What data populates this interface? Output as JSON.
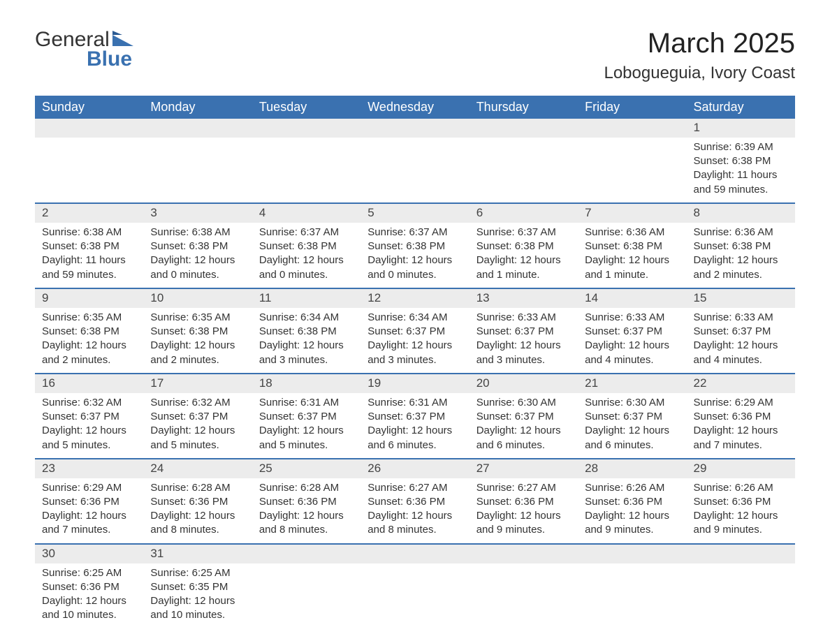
{
  "logo": {
    "text1": "General",
    "text2": "Blue",
    "accent_color": "#3a71b0"
  },
  "title": "March 2025",
  "location": "Lobogueguia, Ivory Coast",
  "colors": {
    "header_bg": "#3a71b0",
    "header_text": "#ffffff",
    "daynum_bg": "#ececec",
    "row_divider": "#3a71b0",
    "body_text": "#333333",
    "background": "#ffffff"
  },
  "typography": {
    "title_fontsize_pt": 30,
    "location_fontsize_pt": 18,
    "header_fontsize_pt": 14,
    "cell_fontsize_pt": 11
  },
  "calendar": {
    "type": "table",
    "columns": [
      "Sunday",
      "Monday",
      "Tuesday",
      "Wednesday",
      "Thursday",
      "Friday",
      "Saturday"
    ],
    "weeks": [
      [
        null,
        null,
        null,
        null,
        null,
        null,
        {
          "day": "1",
          "sunrise": "Sunrise: 6:39 AM",
          "sunset": "Sunset: 6:38 PM",
          "daylight": "Daylight: 11 hours and 59 minutes."
        }
      ],
      [
        {
          "day": "2",
          "sunrise": "Sunrise: 6:38 AM",
          "sunset": "Sunset: 6:38 PM",
          "daylight": "Daylight: 11 hours and 59 minutes."
        },
        {
          "day": "3",
          "sunrise": "Sunrise: 6:38 AM",
          "sunset": "Sunset: 6:38 PM",
          "daylight": "Daylight: 12 hours and 0 minutes."
        },
        {
          "day": "4",
          "sunrise": "Sunrise: 6:37 AM",
          "sunset": "Sunset: 6:38 PM",
          "daylight": "Daylight: 12 hours and 0 minutes."
        },
        {
          "day": "5",
          "sunrise": "Sunrise: 6:37 AM",
          "sunset": "Sunset: 6:38 PM",
          "daylight": "Daylight: 12 hours and 0 minutes."
        },
        {
          "day": "6",
          "sunrise": "Sunrise: 6:37 AM",
          "sunset": "Sunset: 6:38 PM",
          "daylight": "Daylight: 12 hours and 1 minute."
        },
        {
          "day": "7",
          "sunrise": "Sunrise: 6:36 AM",
          "sunset": "Sunset: 6:38 PM",
          "daylight": "Daylight: 12 hours and 1 minute."
        },
        {
          "day": "8",
          "sunrise": "Sunrise: 6:36 AM",
          "sunset": "Sunset: 6:38 PM",
          "daylight": "Daylight: 12 hours and 2 minutes."
        }
      ],
      [
        {
          "day": "9",
          "sunrise": "Sunrise: 6:35 AM",
          "sunset": "Sunset: 6:38 PM",
          "daylight": "Daylight: 12 hours and 2 minutes."
        },
        {
          "day": "10",
          "sunrise": "Sunrise: 6:35 AM",
          "sunset": "Sunset: 6:38 PM",
          "daylight": "Daylight: 12 hours and 2 minutes."
        },
        {
          "day": "11",
          "sunrise": "Sunrise: 6:34 AM",
          "sunset": "Sunset: 6:38 PM",
          "daylight": "Daylight: 12 hours and 3 minutes."
        },
        {
          "day": "12",
          "sunrise": "Sunrise: 6:34 AM",
          "sunset": "Sunset: 6:37 PM",
          "daylight": "Daylight: 12 hours and 3 minutes."
        },
        {
          "day": "13",
          "sunrise": "Sunrise: 6:33 AM",
          "sunset": "Sunset: 6:37 PM",
          "daylight": "Daylight: 12 hours and 3 minutes."
        },
        {
          "day": "14",
          "sunrise": "Sunrise: 6:33 AM",
          "sunset": "Sunset: 6:37 PM",
          "daylight": "Daylight: 12 hours and 4 minutes."
        },
        {
          "day": "15",
          "sunrise": "Sunrise: 6:33 AM",
          "sunset": "Sunset: 6:37 PM",
          "daylight": "Daylight: 12 hours and 4 minutes."
        }
      ],
      [
        {
          "day": "16",
          "sunrise": "Sunrise: 6:32 AM",
          "sunset": "Sunset: 6:37 PM",
          "daylight": "Daylight: 12 hours and 5 minutes."
        },
        {
          "day": "17",
          "sunrise": "Sunrise: 6:32 AM",
          "sunset": "Sunset: 6:37 PM",
          "daylight": "Daylight: 12 hours and 5 minutes."
        },
        {
          "day": "18",
          "sunrise": "Sunrise: 6:31 AM",
          "sunset": "Sunset: 6:37 PM",
          "daylight": "Daylight: 12 hours and 5 minutes."
        },
        {
          "day": "19",
          "sunrise": "Sunrise: 6:31 AM",
          "sunset": "Sunset: 6:37 PM",
          "daylight": "Daylight: 12 hours and 6 minutes."
        },
        {
          "day": "20",
          "sunrise": "Sunrise: 6:30 AM",
          "sunset": "Sunset: 6:37 PM",
          "daylight": "Daylight: 12 hours and 6 minutes."
        },
        {
          "day": "21",
          "sunrise": "Sunrise: 6:30 AM",
          "sunset": "Sunset: 6:37 PM",
          "daylight": "Daylight: 12 hours and 6 minutes."
        },
        {
          "day": "22",
          "sunrise": "Sunrise: 6:29 AM",
          "sunset": "Sunset: 6:36 PM",
          "daylight": "Daylight: 12 hours and 7 minutes."
        }
      ],
      [
        {
          "day": "23",
          "sunrise": "Sunrise: 6:29 AM",
          "sunset": "Sunset: 6:36 PM",
          "daylight": "Daylight: 12 hours and 7 minutes."
        },
        {
          "day": "24",
          "sunrise": "Sunrise: 6:28 AM",
          "sunset": "Sunset: 6:36 PM",
          "daylight": "Daylight: 12 hours and 8 minutes."
        },
        {
          "day": "25",
          "sunrise": "Sunrise: 6:28 AM",
          "sunset": "Sunset: 6:36 PM",
          "daylight": "Daylight: 12 hours and 8 minutes."
        },
        {
          "day": "26",
          "sunrise": "Sunrise: 6:27 AM",
          "sunset": "Sunset: 6:36 PM",
          "daylight": "Daylight: 12 hours and 8 minutes."
        },
        {
          "day": "27",
          "sunrise": "Sunrise: 6:27 AM",
          "sunset": "Sunset: 6:36 PM",
          "daylight": "Daylight: 12 hours and 9 minutes."
        },
        {
          "day": "28",
          "sunrise": "Sunrise: 6:26 AM",
          "sunset": "Sunset: 6:36 PM",
          "daylight": "Daylight: 12 hours and 9 minutes."
        },
        {
          "day": "29",
          "sunrise": "Sunrise: 6:26 AM",
          "sunset": "Sunset: 6:36 PM",
          "daylight": "Daylight: 12 hours and 9 minutes."
        }
      ],
      [
        {
          "day": "30",
          "sunrise": "Sunrise: 6:25 AM",
          "sunset": "Sunset: 6:36 PM",
          "daylight": "Daylight: 12 hours and 10 minutes."
        },
        {
          "day": "31",
          "sunrise": "Sunrise: 6:25 AM",
          "sunset": "Sunset: 6:35 PM",
          "daylight": "Daylight: 12 hours and 10 minutes."
        },
        null,
        null,
        null,
        null,
        null
      ]
    ]
  }
}
